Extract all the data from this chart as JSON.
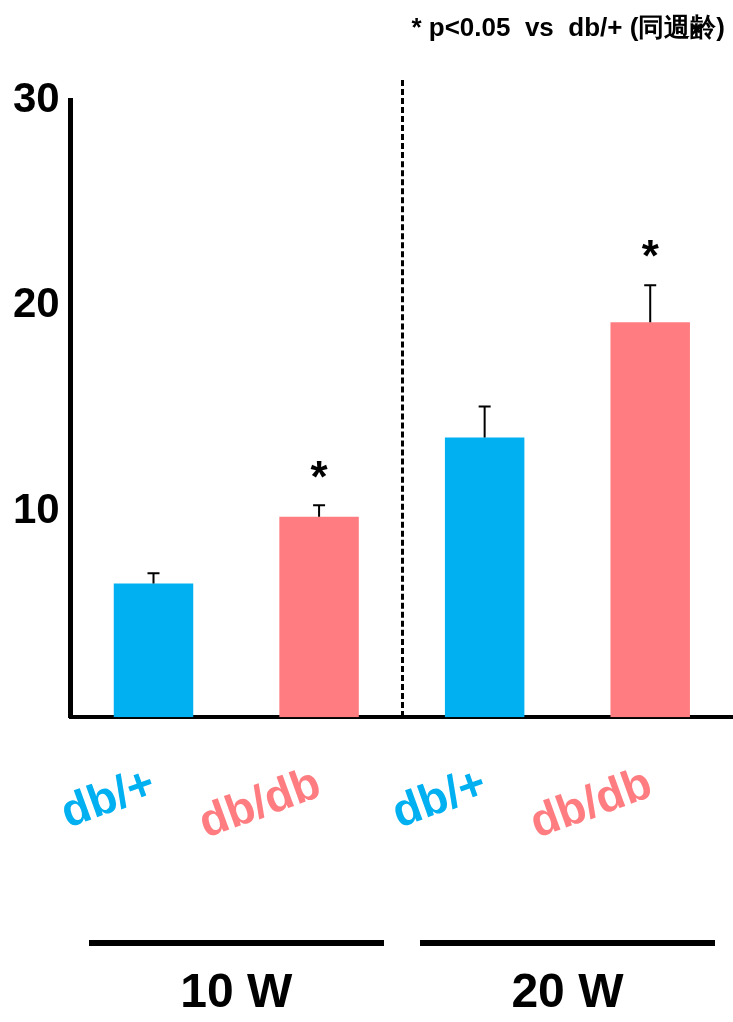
{
  "chart_data": {
    "type": "bar",
    "title": "* p<0.05  vs  db/+ (同週齢)",
    "categories": [
      "db/+",
      "db/db",
      "db/+",
      "db/db"
    ],
    "values": [
      6.5,
      9.75,
      13.6,
      19.2
    ],
    "colors": [
      "#00b0f0",
      "#ff7c80",
      "#00b0f0",
      "#ff7c80"
    ],
    "errors": [
      [
        6.5,
        7.0
      ],
      [
        9.75,
        10.3
      ],
      [
        13.6,
        15.1
      ],
      [
        19.2,
        21.0
      ]
    ],
    "value_labels": [
      null,
      "*",
      null,
      "*"
    ],
    "ylim": [
      0,
      30
    ],
    "yticks": [
      10,
      20,
      30
    ],
    "annotations": [
      "10 W",
      "20 W"
    ],
    "grid": false,
    "legend": false
  }
}
